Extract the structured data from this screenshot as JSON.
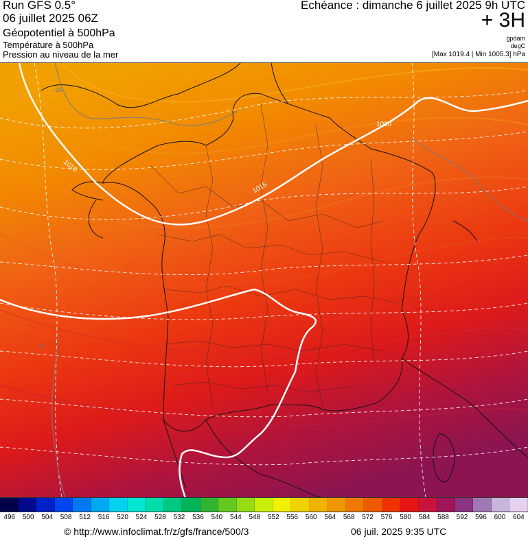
{
  "header": {
    "run_title": "Run GFS 0.5°",
    "run_date": "06 juillet 2025 06Z",
    "field_1": "Géopotentiel à 500hPa",
    "field_2": "Température à 500hPa",
    "field_3": "Pression au niveau de la mer",
    "echeance": "Echéance : dimanche 6 juillet 2025 9h UTC",
    "offset": "+ 3H",
    "unit_1": "gpdam",
    "unit_2": "degC",
    "range": "[Max 1019.4 | Min 1005.3] hPa"
  },
  "map": {
    "isobar_labels": [
      "1010",
      "1010",
      "1015"
    ],
    "isotherm_labels": [
      "-16",
      "-8"
    ]
  },
  "scale": {
    "labels": [
      "496",
      "500",
      "504",
      "508",
      "512",
      "516",
      "520",
      "524",
      "528",
      "532",
      "536",
      "540",
      "544",
      "548",
      "552",
      "556",
      "560",
      "564",
      "568",
      "572",
      "576",
      "580",
      "584",
      "588",
      "592",
      "596",
      "600",
      "604"
    ],
    "colors": [
      "#00004a",
      "#000a8c",
      "#0020c8",
      "#0046f0",
      "#0078f0",
      "#00a8f0",
      "#00d2f0",
      "#00e6d2",
      "#00dcaa",
      "#00c882",
      "#00b45a",
      "#32b432",
      "#64c81e",
      "#96dc14",
      "#c8f00a",
      "#f0f000",
      "#f0d200",
      "#f0b400",
      "#f09600",
      "#f07800",
      "#f05a00",
      "#f03200",
      "#e61414",
      "#c8143c",
      "#a0145a",
      "#8c3282",
      "#a078b4",
      "#c8b4dc",
      "#e6d2f0"
    ]
  },
  "footer": {
    "url": "© http://www.infoclimat.fr/z/gfs/france/500/3",
    "date": "06 juil. 2025  9:35 UTC"
  }
}
